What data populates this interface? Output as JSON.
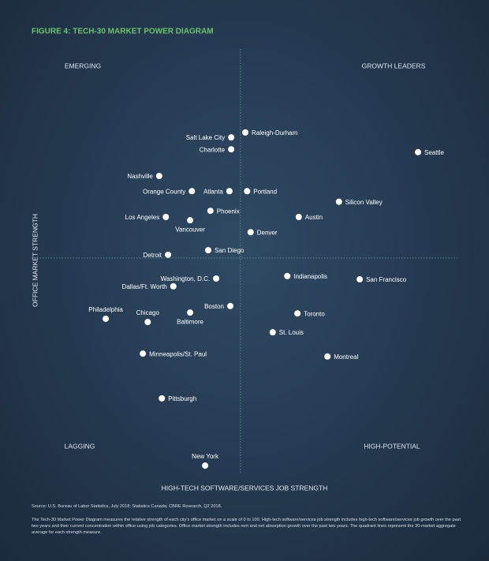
{
  "chart_data": {
    "type": "scatter",
    "title": "FIGURE 4: TECH-30 MARKET POWER DIAGRAM",
    "x_label": "HIGH-TECH SOFTWARE/SERVICES JOB STRENGTH",
    "y_label": "OFFICE MARKET STRENGTH",
    "quadrant_labels": {
      "top_left": "EMERGING",
      "top_right": "GROWTH LEADERS",
      "bottom_left": "LAGGING",
      "bottom_right": "HIGH-POTENTIAL"
    },
    "labels": [
      "Raleigh-Durham",
      "Salt Lake City",
      "Charlotte",
      "Seattle",
      "Nashville",
      "Orange County",
      "Atlanta",
      "Portland",
      "Silicon Valley",
      "Phoenix",
      "Austin",
      "Los Angeles",
      "Vancouver",
      "Denver",
      "San Diego",
      "Detroit",
      "Washington, D.C.",
      "Indianapolis",
      "San Francisco",
      "Dallas/Ft. Worth",
      "Boston",
      "Philadelphia",
      "Chicago",
      "Baltimore",
      "Toronto",
      "St. Louis",
      "Minneapolis/St. Paul",
      "Montreal",
      "Pittsburgh",
      "New York"
    ],
    "x": [
      48.4,
      45.2,
      45.2,
      87.5,
      28.9,
      36.3,
      44.8,
      48.8,
      69.6,
      40.5,
      60.5,
      30.4,
      35.9,
      49.6,
      40.0,
      30.9,
      41.8,
      57.9,
      74.3,
      32.1,
      45.0,
      16.8,
      26.3,
      35.9,
      60.2,
      54.6,
      25.2,
      67.0,
      29.5,
      39.3
    ],
    "values": [
      83.1,
      81.9,
      79.0,
      78.3,
      72.5,
      68.8,
      68.8,
      68.8,
      66.2,
      64.0,
      62.5,
      62.5,
      61.7,
      58.8,
      54.4,
      53.3,
      47.5,
      48.1,
      47.3,
      45.6,
      40.8,
      37.7,
      36.9,
      39.2,
      39.0,
      34.4,
      29.2,
      28.5,
      18.3,
      1.9
    ],
    "color": "#ffffff",
    "xlim": [
      0,
      100
    ],
    "ylim": [
      0,
      100
    ],
    "quadrant_lines": {
      "x": 47.3,
      "y": 52.5
    },
    "source": "Source: U.S. Bureau of Labor Statistics, July 2018; Statistics Canada; CBRE Research, Q2 2018.",
    "note": "The Tech-30 Market Power Diagram measures the relative strength of each city's office market on a scale of 0 to 100. High-tech software/services job strength includes high-tech software/services job growth over the past two years and their current concentration within office-using job categories. Office market strength includes rent and net absorption growth over the past two years. The quadrant lines represent the 30-market aggregate average for each strength measure."
  }
}
